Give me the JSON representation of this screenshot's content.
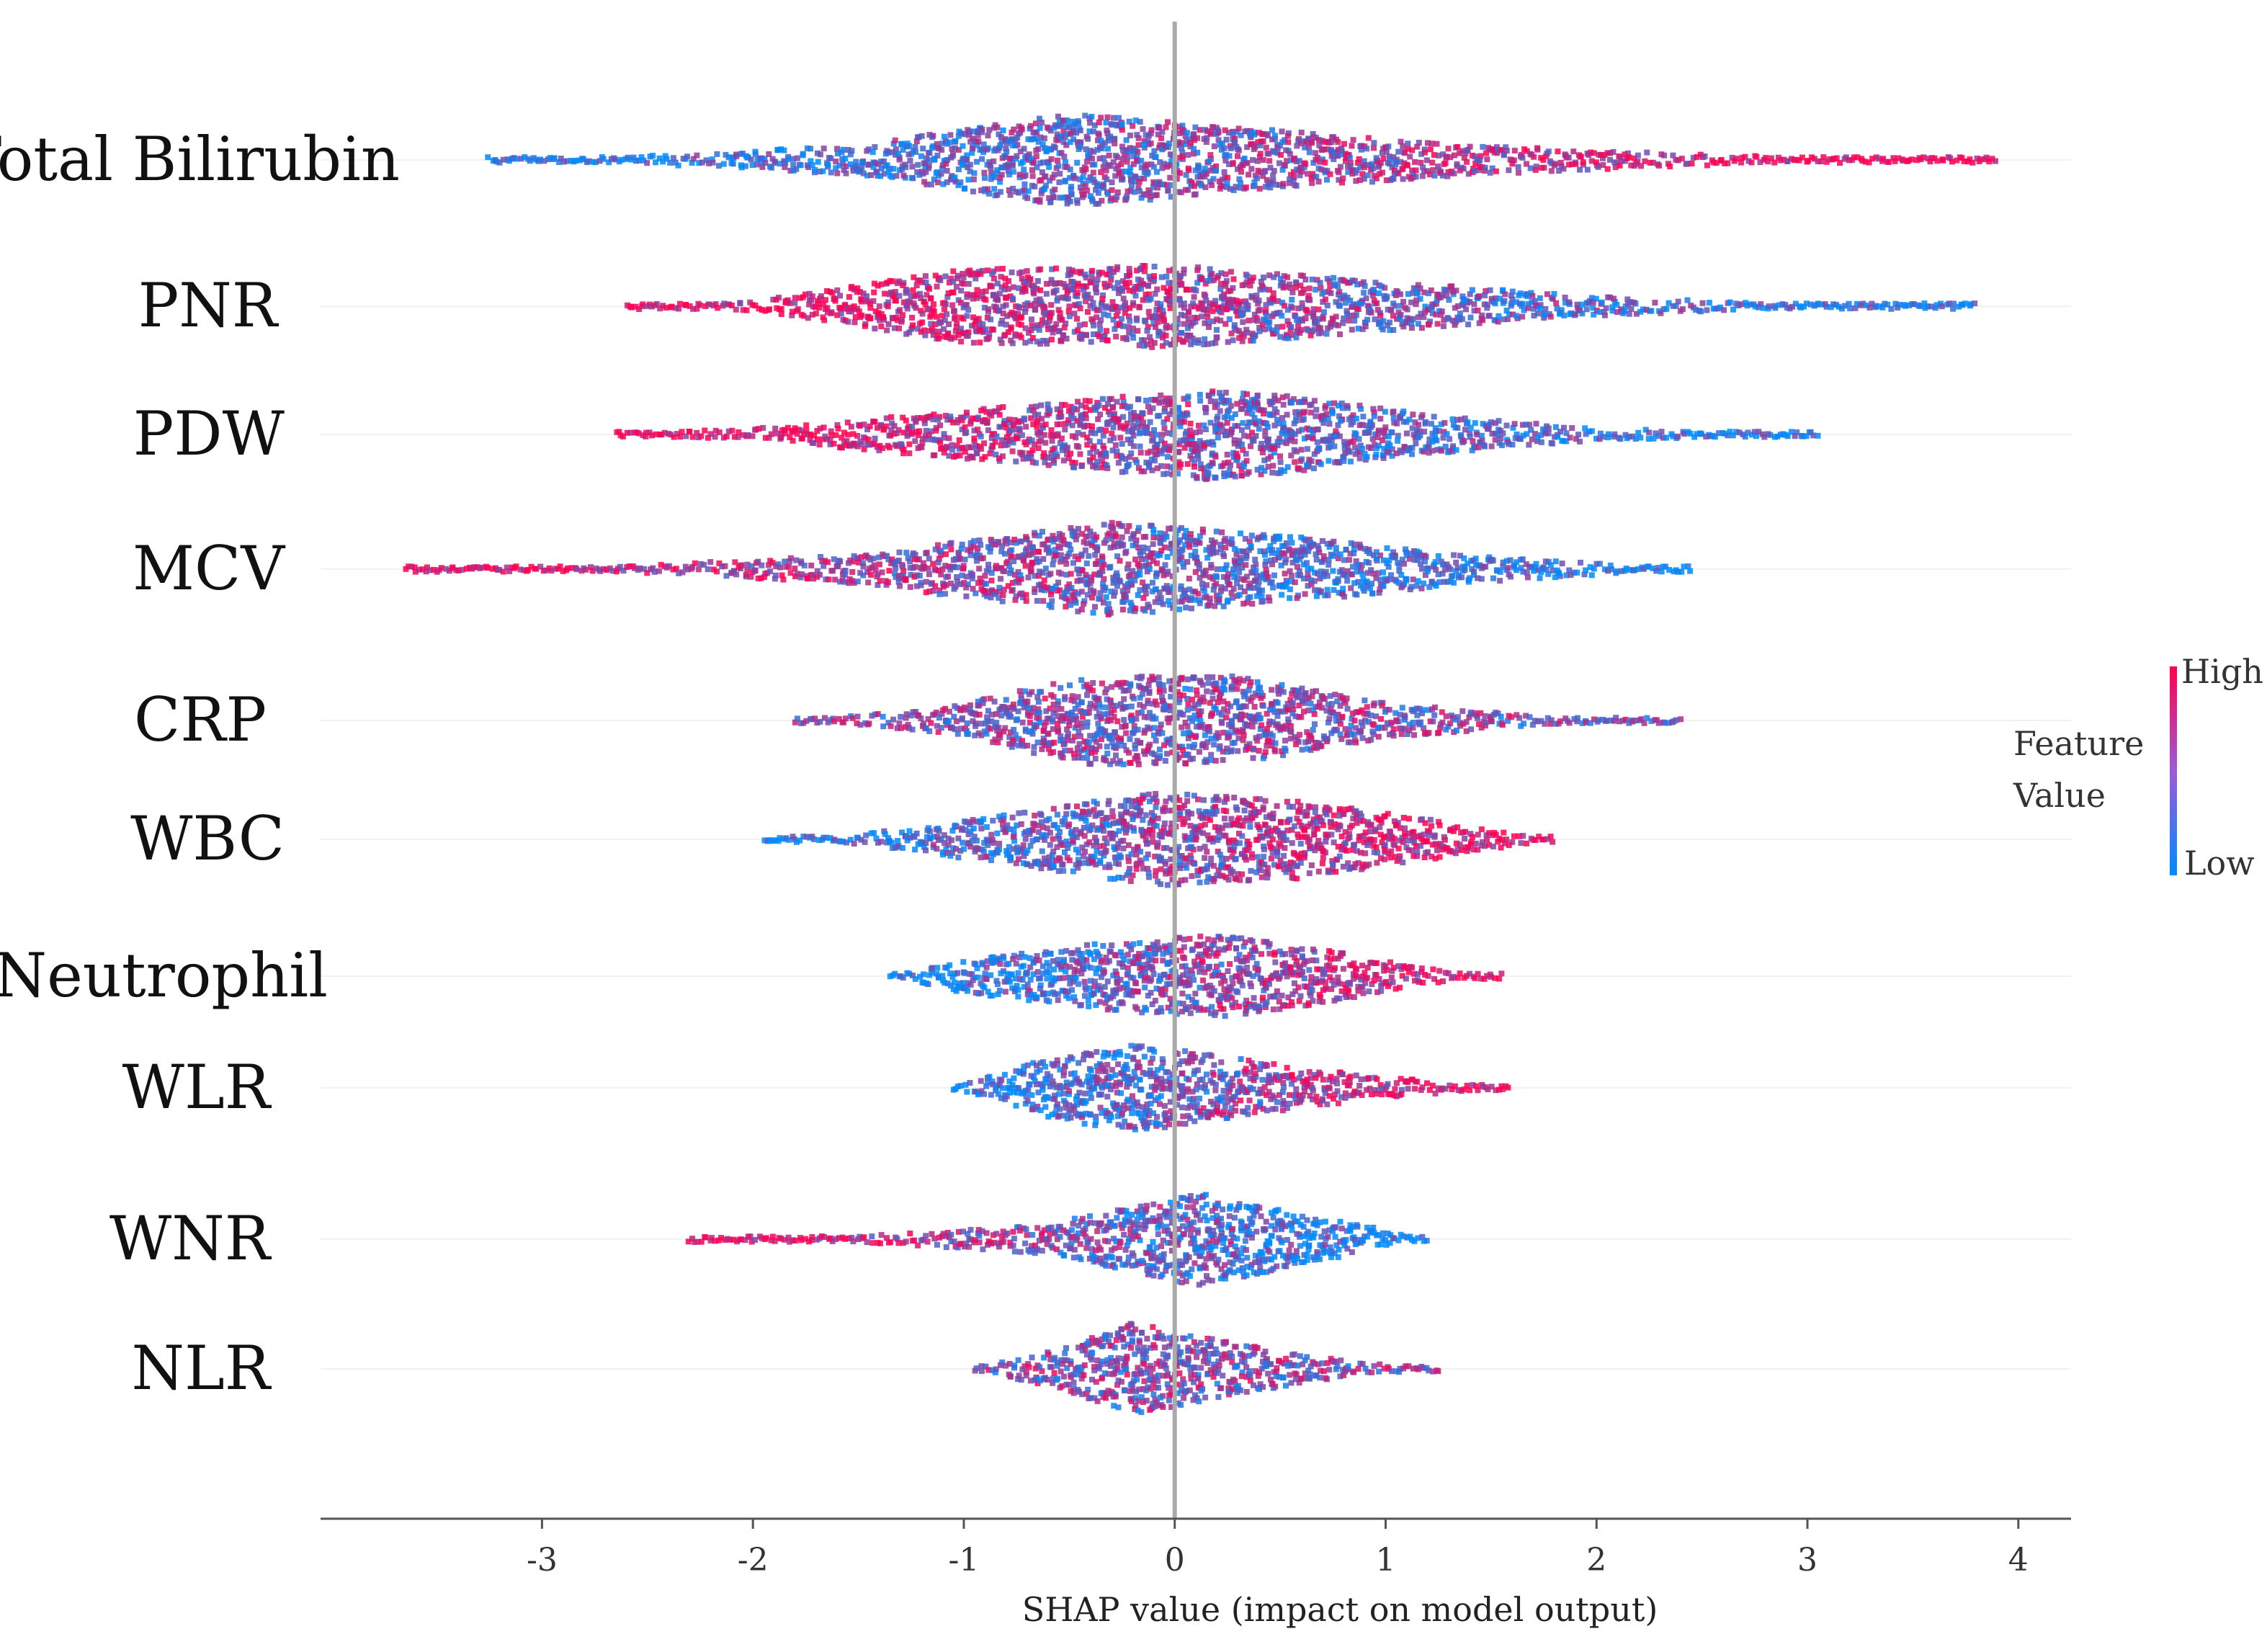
{
  "chart_data": {
    "type": "beeswarm",
    "xlabel": "SHAP value (impact on model output)",
    "xlim": [
      -4.05,
      4.25
    ],
    "xticks": [
      -3,
      -2,
      -1,
      0,
      1,
      2,
      3,
      4
    ],
    "xtick_labels": [
      "-3",
      "-2",
      "-1",
      "0",
      "1",
      "2",
      "3",
      "4"
    ],
    "features": [
      {
        "name": "Total Bilirubin",
        "min": -3.25,
        "max": 3.9,
        "density": [
          [
            -3.25,
            0.01
          ],
          [
            -2.6,
            0.06
          ],
          [
            -1.5,
            0.3
          ],
          [
            -0.5,
            0.95
          ],
          [
            0.2,
            0.7
          ],
          [
            1.4,
            0.3
          ],
          [
            2.6,
            0.1
          ],
          [
            3.9,
            0.01
          ]
        ],
        "color_trend": "positive"
      },
      {
        "name": "PNR",
        "min": -2.6,
        "max": 3.8,
        "density": [
          [
            -2.6,
            0.01
          ],
          [
            -2.0,
            0.1
          ],
          [
            -1.0,
            0.75
          ],
          [
            0.0,
            0.85
          ],
          [
            1.0,
            0.5
          ],
          [
            2.0,
            0.2
          ],
          [
            2.8,
            0.06
          ],
          [
            3.8,
            0.01
          ]
        ],
        "color_trend": "negative"
      },
      {
        "name": "PDW",
        "min": -2.65,
        "max": 3.05,
        "density": [
          [
            -2.65,
            0.01
          ],
          [
            -2.0,
            0.12
          ],
          [
            -1.0,
            0.5
          ],
          [
            0.25,
            0.95
          ],
          [
            1.2,
            0.4
          ],
          [
            2.0,
            0.12
          ],
          [
            3.05,
            0.01
          ]
        ],
        "color_trend": "negative"
      },
      {
        "name": "MCV",
        "min": -3.65,
        "max": 2.45,
        "density": [
          [
            -3.65,
            0.01
          ],
          [
            -2.7,
            0.04
          ],
          [
            -1.5,
            0.3
          ],
          [
            -0.3,
            0.95
          ],
          [
            0.5,
            0.7
          ],
          [
            1.5,
            0.25
          ],
          [
            2.45,
            0.01
          ]
        ],
        "color_trend": "negative"
      },
      {
        "name": "CRP",
        "min": -1.8,
        "max": 2.4,
        "density": [
          [
            -1.8,
            0.01
          ],
          [
            -1.2,
            0.2
          ],
          [
            -0.4,
            0.9
          ],
          [
            0.3,
            0.9
          ],
          [
            1.0,
            0.35
          ],
          [
            1.9,
            0.05
          ],
          [
            2.4,
            0.01
          ]
        ],
        "color_trend": "mixed"
      },
      {
        "name": "WBC",
        "min": -1.95,
        "max": 1.8,
        "density": [
          [
            -1.95,
            0.01
          ],
          [
            -1.5,
            0.1
          ],
          [
            -0.8,
            0.5
          ],
          [
            -0.1,
            0.95
          ],
          [
            0.6,
            0.8
          ],
          [
            1.3,
            0.35
          ],
          [
            1.8,
            0.01
          ]
        ],
        "color_trend": "positive"
      },
      {
        "name": "Neutrophil",
        "min": -1.35,
        "max": 1.55,
        "density": [
          [
            -1.35,
            0.01
          ],
          [
            -1.0,
            0.35
          ],
          [
            -0.3,
            0.7
          ],
          [
            0.2,
            0.85
          ],
          [
            0.7,
            0.55
          ],
          [
            1.2,
            0.15
          ],
          [
            1.55,
            0.01
          ]
        ],
        "color_trend": "positive"
      },
      {
        "name": "WLR",
        "min": -1.05,
        "max": 1.6,
        "density": [
          [
            -1.05,
            0.01
          ],
          [
            -0.6,
            0.6
          ],
          [
            -0.2,
            0.9
          ],
          [
            0.3,
            0.6
          ],
          [
            0.9,
            0.25
          ],
          [
            1.6,
            0.01
          ]
        ],
        "color_trend": "positive"
      },
      {
        "name": "WNR",
        "min": -2.3,
        "max": 1.2,
        "density": [
          [
            -2.3,
            0.01
          ],
          [
            -1.5,
            0.06
          ],
          [
            -0.6,
            0.3
          ],
          [
            0.1,
            0.95
          ],
          [
            0.7,
            0.45
          ],
          [
            1.2,
            0.01
          ]
        ],
        "color_trend": "negative"
      },
      {
        "name": "NLR",
        "min": -0.95,
        "max": 1.25,
        "density": [
          [
            -0.95,
            0.01
          ],
          [
            -0.5,
            0.45
          ],
          [
            -0.2,
            0.95
          ],
          [
            0.3,
            0.5
          ],
          [
            0.9,
            0.12
          ],
          [
            1.25,
            0.01
          ]
        ],
        "color_trend": "mixed"
      }
    ],
    "legend": {
      "title_line1": "Feature",
      "title_line2": "Value",
      "high_label": "High",
      "low_label": "Low",
      "high_color": "#ff0052",
      "low_color": "#008bfb",
      "placement": "right"
    },
    "colors": {
      "zero_line": "#aaaaaa",
      "axis": "#555555",
      "row_line": "#f2f2f2"
    }
  }
}
